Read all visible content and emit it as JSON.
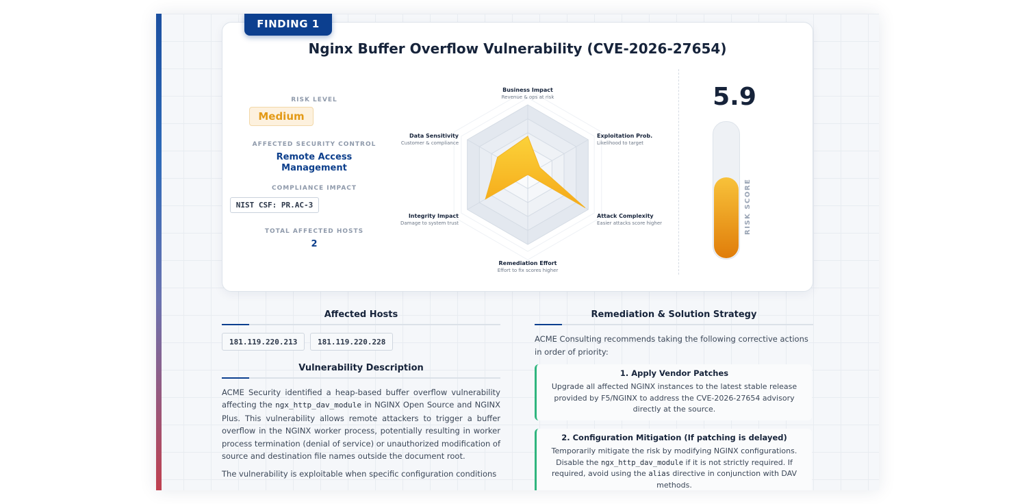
{
  "finding": {
    "badge": "FINDING 1",
    "title": "Nginx Buffer Overflow Vulnerability (CVE-2026-27654)",
    "risk_level_label": "RISK LEVEL",
    "risk_level": "Medium",
    "control_label": "AFFECTED SECURITY CONTROL",
    "control_value": "Remote Access Management",
    "compliance_label": "COMPLIANCE IMPACT",
    "compliance_value": "NIST CSF: PR.AC-3",
    "hosts_label": "TOTAL AFFECTED HOSTS",
    "hosts_count": "2",
    "risk_score": "5.9",
    "risk_score_label": "RISK SCORE",
    "risk_score_fraction": 0.59,
    "colors": {
      "accent": "#0c3f8f",
      "medium": "#e39a17",
      "fill": "#f8c23a",
      "step_border": "#2fb57e"
    }
  },
  "chart_data": {
    "type": "radar",
    "scale": [
      0,
      10
    ],
    "axes": [
      {
        "name": "Business Impact",
        "sub": "Revenue & ops at risk",
        "value": 5.5
      },
      {
        "name": "Exploitation Prob.",
        "sub": "Likelihood to target",
        "value": 2.0
      },
      {
        "name": "Attack Complexity",
        "sub": "Easier attacks score higher",
        "value": 9.5
      },
      {
        "name": "Remediation Effort",
        "sub": "Effort to fix scores higher",
        "value": 0.0
      },
      {
        "name": "Integrity Impact",
        "sub": "Damage to system trust",
        "value": 7.0
      },
      {
        "name": "Data Sensitivity",
        "sub": "Customer & compliance",
        "value": 5.0
      }
    ]
  },
  "affected_hosts": {
    "heading": "Affected Hosts",
    "hosts": [
      "181.119.220.213",
      "181.119.220.228"
    ]
  },
  "description": {
    "heading": "Vulnerability Description",
    "p1_a": "ACME Security identified a heap-based buffer overflow vulnerability affecting the ",
    "p1_code": "ngx_http_dav_module",
    "p1_b": " in NGINX Open Source and NGINX Plus. This vulnerability allows remote attackers to trigger a buffer overflow in the NGINX worker process, potentially resulting in worker process termination (denial of service) or unauthorized modification of source and destination file names outside the document root.",
    "p2": "The vulnerability is exploitable when specific configuration conditions"
  },
  "remediation": {
    "heading": "Remediation & Solution Strategy",
    "intro": "ACME Consulting recommends taking the following corrective actions in order of priority:",
    "step1_title": "1. Apply Vendor Patches",
    "step1_body": "Upgrade all affected NGINX instances to the latest stable release provided by F5/NGINX to address the CVE-2026-27654 advisory directly at the source.",
    "step2_title": "2. Configuration Mitigation (If patching is delayed)",
    "step2_a": "Temporarily mitigate the risk by modifying NGINX configurations. Disable the ",
    "step2_code1": "ngx_http_dav_module",
    "step2_b": " if it is not strictly required. If required, avoid using the ",
    "step2_code2": "alias",
    "step2_c": " directive in conjunction with DAV methods."
  }
}
